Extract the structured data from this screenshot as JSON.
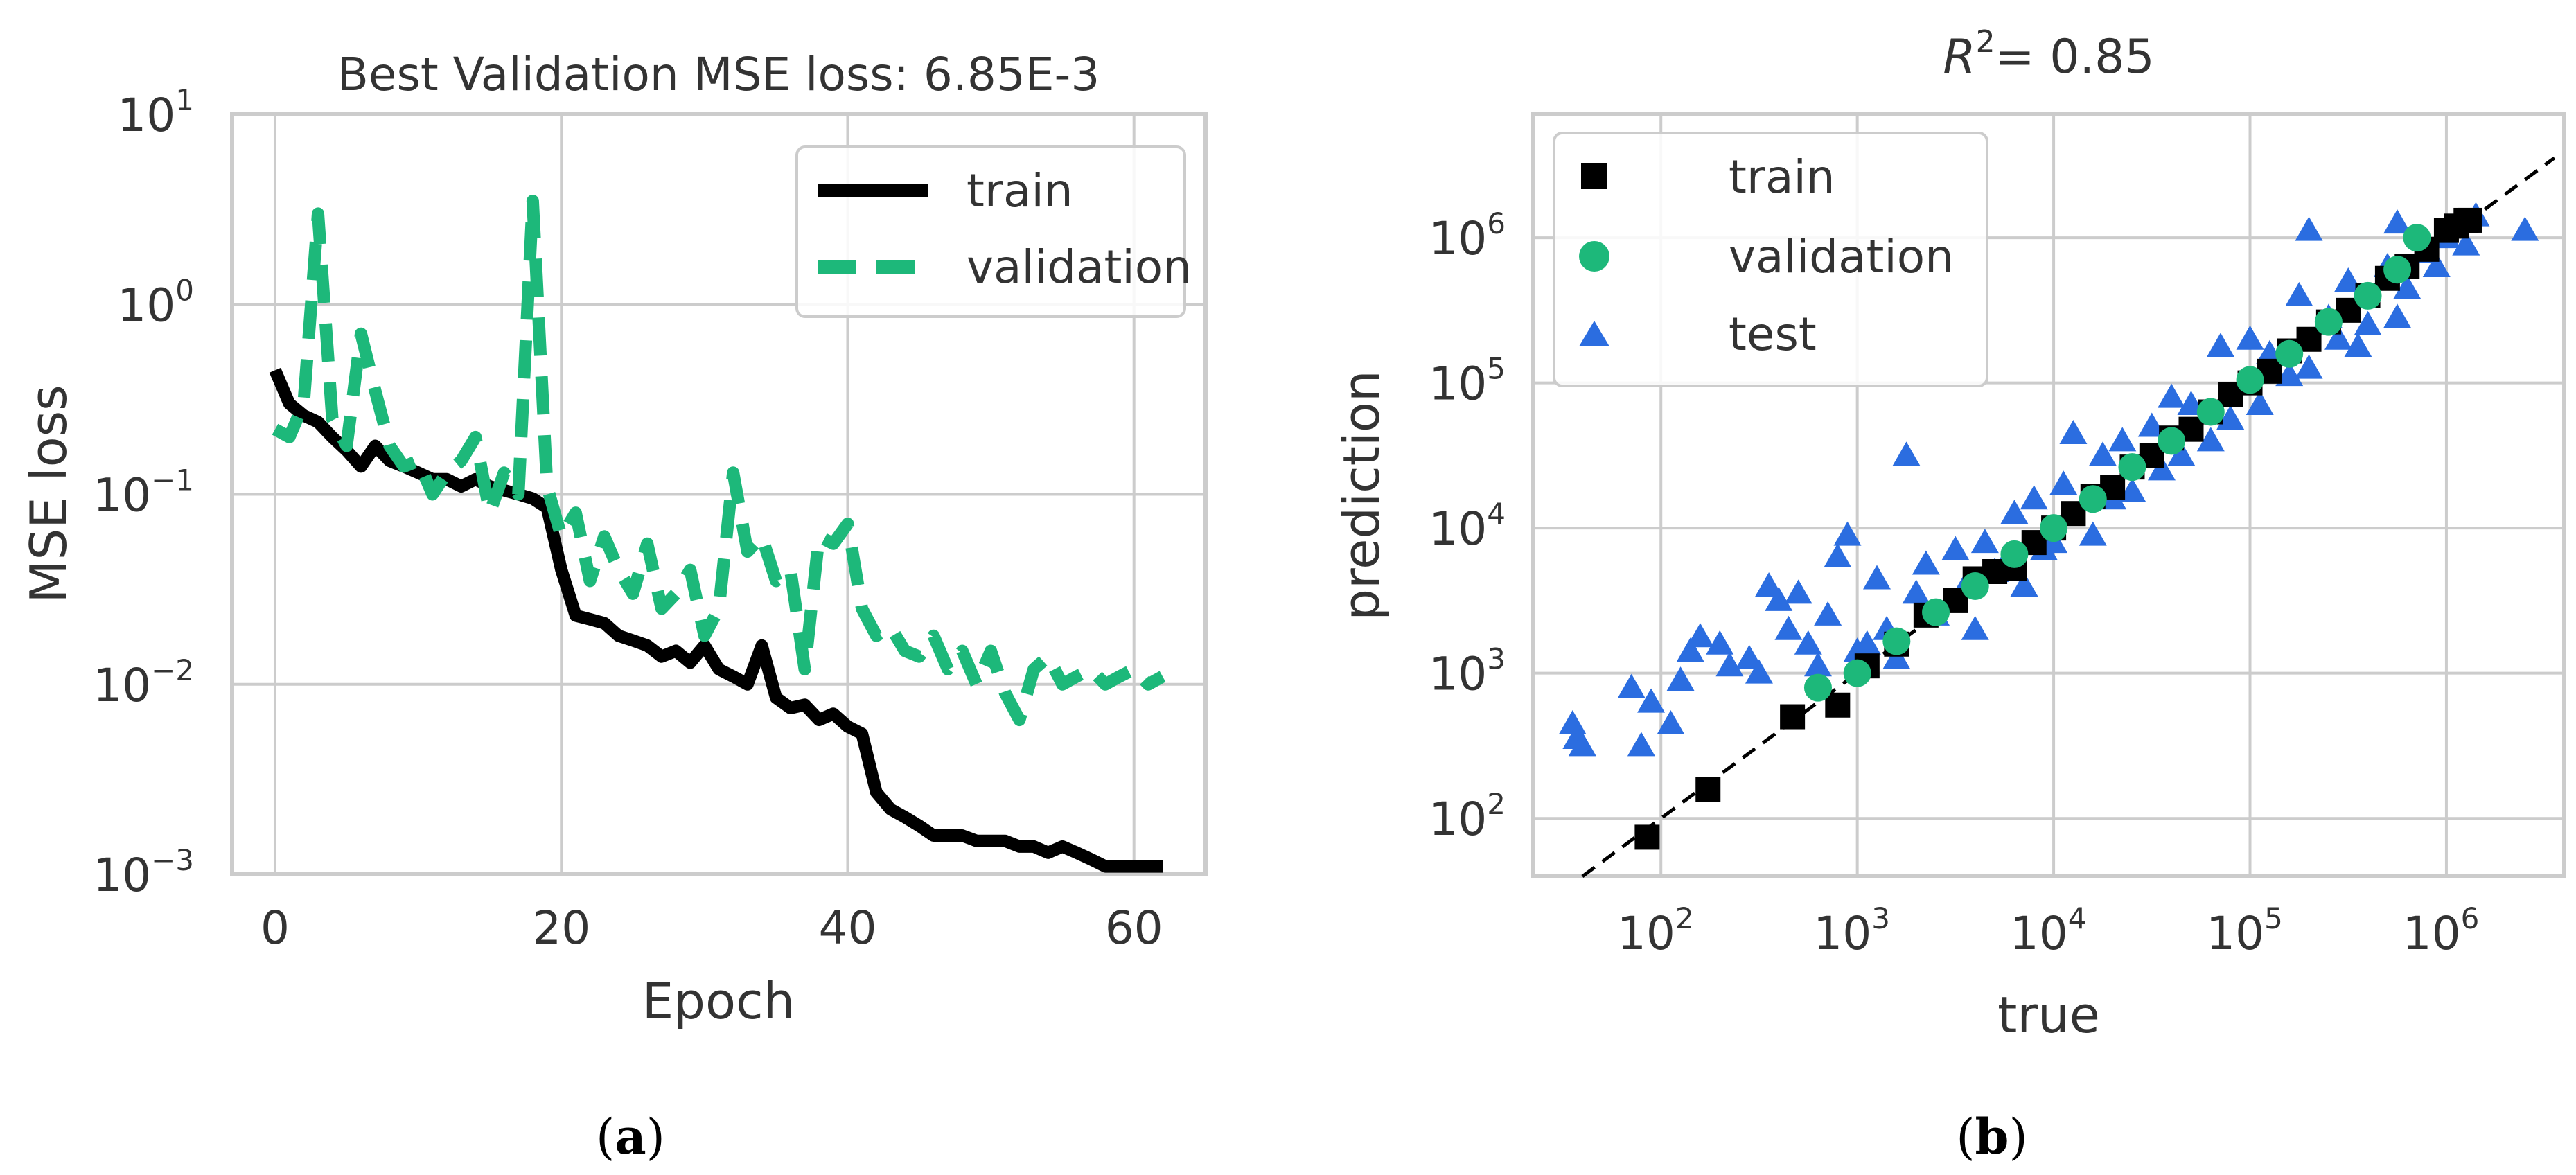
{
  "colors": {
    "train": "#000000",
    "validation": "#1db87a",
    "test": "#2b6de0",
    "grid": "#cccccc",
    "text": "#333333"
  },
  "captions": {
    "a": "(a)",
    "b": "(b)",
    "a_letter": "a",
    "b_letter": "b"
  },
  "chart_data": [
    {
      "id": "a",
      "type": "line",
      "title": "Best Validation MSE loss: 6.85E-3",
      "xlabel": "Epoch",
      "ylabel": "MSE loss",
      "yscale": "log",
      "xlim": [
        -3,
        65
      ],
      "ylim": [
        0.001,
        10
      ],
      "xticks": [
        0,
        20,
        40,
        60
      ],
      "xtick_labels": [
        "0",
        "20",
        "40",
        "60"
      ],
      "yticks": [
        0.001,
        0.01,
        0.1,
        1,
        10
      ],
      "ytick_labels": [
        {
          "base": "10",
          "exp": "−3"
        },
        {
          "base": "10",
          "exp": "−2"
        },
        {
          "base": "10",
          "exp": "−1"
        },
        {
          "base": "10",
          "exp": "0"
        },
        {
          "base": "10",
          "exp": "1"
        }
      ],
      "legend": {
        "position": "upper right",
        "entries": [
          "train",
          "validation"
        ]
      },
      "series": [
        {
          "name": "train",
          "style": "solid",
          "x": [
            0,
            1,
            2,
            3,
            4,
            5,
            6,
            7,
            8,
            9,
            10,
            11,
            12,
            13,
            14,
            15,
            16,
            17,
            18,
            19,
            20,
            21,
            22,
            23,
            24,
            25,
            26,
            27,
            28,
            29,
            30,
            31,
            32,
            33,
            34,
            35,
            36,
            37,
            38,
            39,
            40,
            41,
            42,
            43,
            44,
            45,
            46,
            47,
            48,
            49,
            50,
            51,
            52,
            53,
            54,
            55,
            56,
            57,
            58,
            59,
            60,
            61,
            62
          ],
          "y": [
            0.45,
            0.3,
            0.26,
            0.24,
            0.2,
            0.17,
            0.14,
            0.18,
            0.15,
            0.14,
            0.13,
            0.12,
            0.12,
            0.11,
            0.12,
            0.11,
            0.105,
            0.1,
            0.095,
            0.085,
            0.04,
            0.023,
            0.022,
            0.021,
            0.018,
            0.017,
            0.016,
            0.014,
            0.015,
            0.013,
            0.016,
            0.012,
            0.011,
            0.01,
            0.016,
            0.0085,
            0.0075,
            0.0078,
            0.0065,
            0.007,
            0.006,
            0.0055,
            0.0027,
            0.0022,
            0.002,
            0.0018,
            0.0016,
            0.0016,
            0.0016,
            0.0015,
            0.0015,
            0.0015,
            0.0014,
            0.0014,
            0.0013,
            0.0014,
            0.0013,
            0.0012,
            0.0011,
            0.0011,
            0.0011,
            0.0011,
            0.0011
          ]
        },
        {
          "name": "validation",
          "style": "dashed",
          "x": [
            0,
            1,
            2,
            3,
            4,
            5,
            6,
            7,
            8,
            9,
            10,
            11,
            12,
            13,
            14,
            15,
            16,
            17,
            18,
            19,
            20,
            21,
            22,
            23,
            24,
            25,
            26,
            27,
            28,
            29,
            30,
            31,
            32,
            33,
            34,
            35,
            36,
            37,
            38,
            39,
            40,
            41,
            42,
            43,
            44,
            45,
            46,
            47,
            48,
            49,
            50,
            51,
            52,
            53,
            54,
            55,
            56,
            57,
            58,
            59,
            60,
            61,
            62
          ],
          "y": [
            0.22,
            0.2,
            0.3,
            3.0,
            0.25,
            0.18,
            0.7,
            0.35,
            0.18,
            0.14,
            0.15,
            0.1,
            0.13,
            0.15,
            0.2,
            0.08,
            0.13,
            0.1,
            3.5,
            0.11,
            0.06,
            0.08,
            0.035,
            0.06,
            0.04,
            0.03,
            0.055,
            0.025,
            0.03,
            0.04,
            0.018,
            0.025,
            0.13,
            0.05,
            0.06,
            0.035,
            0.04,
            0.012,
            0.06,
            0.055,
            0.07,
            0.025,
            0.018,
            0.02,
            0.015,
            0.014,
            0.018,
            0.012,
            0.015,
            0.01,
            0.015,
            0.009,
            0.0065,
            0.012,
            0.014,
            0.01,
            0.011,
            0.012,
            0.01,
            0.011,
            0.012,
            0.01,
            0.011
          ]
        }
      ]
    },
    {
      "id": "b",
      "type": "scatter",
      "title": "R",
      "title_sup": "2",
      "title_value": "= 0.85",
      "xlabel": "true",
      "ylabel": "prediction",
      "xscale": "log",
      "yscale": "log",
      "xlim_log10": [
        1.35,
        6.6
      ],
      "ylim_log10": [
        1.6,
        6.85
      ],
      "xtick_exps": [
        2,
        3,
        4,
        5,
        6
      ],
      "ytick_exps": [
        2,
        3,
        4,
        5,
        6
      ],
      "xtick_labels": [
        {
          "base": "10",
          "exp": "2"
        },
        {
          "base": "10",
          "exp": "3"
        },
        {
          "base": "10",
          "exp": "4"
        },
        {
          "base": "10",
          "exp": "5"
        },
        {
          "base": "10",
          "exp": "6"
        }
      ],
      "ytick_labels": [
        {
          "base": "10",
          "exp": "2"
        },
        {
          "base": "10",
          "exp": "3"
        },
        {
          "base": "10",
          "exp": "4"
        },
        {
          "base": "10",
          "exp": "5"
        },
        {
          "base": "10",
          "exp": "6"
        }
      ],
      "reference_line": {
        "style": "dashed",
        "color": "#000000",
        "from_log10": 1.6,
        "to_log10": 6.55
      },
      "legend": {
        "position": "upper left",
        "entries": [
          "train",
          "validation",
          "test"
        ]
      },
      "series": [
        {
          "name": "train",
          "marker": "square",
          "points_log10": [
            [
              1.93,
              1.87
            ],
            [
              2.24,
              2.2
            ],
            [
              2.67,
              2.7
            ],
            [
              2.9,
              2.78
            ],
            [
              3.05,
              3.05
            ],
            [
              3.2,
              3.2
            ],
            [
              3.35,
              3.4
            ],
            [
              3.5,
              3.5
            ],
            [
              3.6,
              3.65
            ],
            [
              3.7,
              3.7
            ],
            [
              3.8,
              3.72
            ],
            [
              3.9,
              3.9
            ],
            [
              4.0,
              4.0
            ],
            [
              4.1,
              4.1
            ],
            [
              4.2,
              4.22
            ],
            [
              4.3,
              4.28
            ],
            [
              4.4,
              4.42
            ],
            [
              4.5,
              4.5
            ],
            [
              4.6,
              4.62
            ],
            [
              4.7,
              4.68
            ],
            [
              4.8,
              4.8
            ],
            [
              4.9,
              4.92
            ],
            [
              5.0,
              5.0
            ],
            [
              5.1,
              5.08
            ],
            [
              5.2,
              5.22
            ],
            [
              5.3,
              5.3
            ],
            [
              5.4,
              5.42
            ],
            [
              5.5,
              5.5
            ],
            [
              5.6,
              5.6
            ],
            [
              5.7,
              5.72
            ],
            [
              5.8,
              5.8
            ],
            [
              5.9,
              5.92
            ],
            [
              6.0,
              6.05
            ],
            [
              6.05,
              6.08
            ],
            [
              6.1,
              6.12
            ],
            [
              6.12,
              6.12
            ]
          ]
        },
        {
          "name": "validation",
          "marker": "circle",
          "points_log10": [
            [
              2.8,
              2.9
            ],
            [
              3.0,
              3.0
            ],
            [
              3.2,
              3.22
            ],
            [
              3.4,
              3.42
            ],
            [
              3.6,
              3.6
            ],
            [
              3.8,
              3.82
            ],
            [
              4.0,
              4.0
            ],
            [
              4.2,
              4.2
            ],
            [
              4.4,
              4.42
            ],
            [
              4.6,
              4.6
            ],
            [
              4.8,
              4.8
            ],
            [
              5.0,
              5.02
            ],
            [
              5.2,
              5.2
            ],
            [
              5.4,
              5.42
            ],
            [
              5.6,
              5.6
            ],
            [
              5.75,
              5.78
            ],
            [
              5.85,
              6.0
            ]
          ]
        },
        {
          "name": "test",
          "marker": "triangle",
          "points_log10": [
            [
              1.55,
              2.65
            ],
            [
              1.57,
              2.55
            ],
            [
              1.6,
              2.5
            ],
            [
              1.85,
              2.9
            ],
            [
              1.9,
              2.5
            ],
            [
              1.95,
              2.8
            ],
            [
              2.05,
              2.65
            ],
            [
              2.1,
              2.95
            ],
            [
              2.15,
              3.15
            ],
            [
              2.2,
              3.25
            ],
            [
              2.3,
              3.2
            ],
            [
              2.35,
              3.05
            ],
            [
              2.45,
              3.1
            ],
            [
              2.5,
              3.0
            ],
            [
              2.55,
              3.6
            ],
            [
              2.6,
              3.5
            ],
            [
              2.65,
              3.3
            ],
            [
              2.7,
              3.55
            ],
            [
              2.75,
              3.2
            ],
            [
              2.8,
              3.05
            ],
            [
              2.85,
              3.4
            ],
            [
              2.9,
              3.8
            ],
            [
              2.95,
              3.95
            ],
            [
              3.0,
              3.15
            ],
            [
              3.05,
              3.2
            ],
            [
              3.1,
              3.65
            ],
            [
              3.15,
              3.3
            ],
            [
              3.2,
              3.1
            ],
            [
              3.25,
              4.5
            ],
            [
              3.3,
              3.55
            ],
            [
              3.35,
              3.75
            ],
            [
              3.4,
              3.4
            ],
            [
              3.5,
              3.85
            ],
            [
              3.55,
              3.6
            ],
            [
              3.6,
              3.3
            ],
            [
              3.65,
              3.9
            ],
            [
              3.7,
              3.7
            ],
            [
              3.75,
              3.75
            ],
            [
              3.8,
              4.1
            ],
            [
              3.85,
              3.6
            ],
            [
              3.9,
              4.2
            ],
            [
              3.95,
              3.85
            ],
            [
              4.0,
              3.9
            ],
            [
              4.05,
              4.3
            ],
            [
              4.1,
              4.65
            ],
            [
              4.2,
              3.95
            ],
            [
              4.25,
              4.5
            ],
            [
              4.3,
              4.2
            ],
            [
              4.35,
              4.6
            ],
            [
              4.4,
              4.25
            ],
            [
              4.5,
              4.7
            ],
            [
              4.55,
              4.4
            ],
            [
              4.6,
              4.9
            ],
            [
              4.65,
              4.5
            ],
            [
              4.7,
              4.85
            ],
            [
              4.8,
              4.6
            ],
            [
              4.85,
              5.25
            ],
            [
              4.9,
              4.75
            ],
            [
              5.0,
              5.3
            ],
            [
              5.05,
              4.85
            ],
            [
              5.1,
              5.2
            ],
            [
              5.2,
              5.05
            ],
            [
              5.25,
              5.6
            ],
            [
              5.3,
              5.1
            ],
            [
              5.4,
              5.45
            ],
            [
              5.45,
              5.3
            ],
            [
              5.5,
              5.7
            ],
            [
              5.55,
              5.25
            ],
            [
              5.6,
              5.4
            ],
            [
              5.7,
              5.8
            ],
            [
              5.75,
              5.45
            ],
            [
              5.8,
              5.65
            ],
            [
              5.9,
              5.9
            ],
            [
              5.95,
              5.8
            ],
            [
              6.0,
              6.0
            ],
            [
              6.1,
              5.95
            ],
            [
              6.15,
              6.15
            ],
            [
              6.4,
              6.05
            ],
            [
              5.3,
              6.05
            ],
            [
              5.75,
              6.1
            ]
          ]
        }
      ]
    }
  ]
}
